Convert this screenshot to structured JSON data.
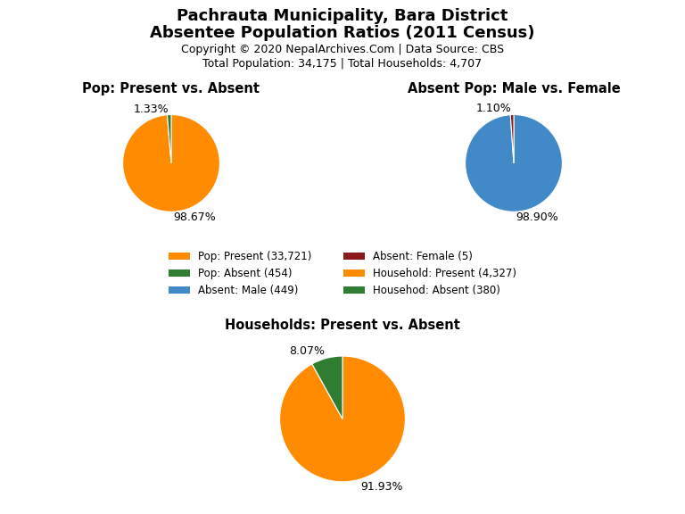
{
  "title": "Pachrauta Municipality, Bara District",
  "subtitle": "Absentee Population Ratios (2011 Census)",
  "annotations": [
    "Copyright © 2020 NepalArchives.Com | Data Source: CBS",
    "Total Population: 34,175 | Total Households: 4,707"
  ],
  "legend": "center",
  "chart_data": [
    {
      "type": "pie",
      "title": "Pop: Present vs. Absent",
      "categories": [
        "Pop: Present (33,721)",
        "Pop: Absent (454)"
      ],
      "values": [
        98.67,
        1.33
      ],
      "value_labels": [
        "98.67%",
        "1.33%"
      ],
      "colors": [
        "#FF8C00",
        "#2E7D32"
      ]
    },
    {
      "type": "pie",
      "title": "Absent Pop: Male vs. Female",
      "categories": [
        "Absent: Male (449)",
        "Absent: Female (5)"
      ],
      "values": [
        98.9,
        1.1
      ],
      "value_labels": [
        "98.90%",
        "1.10%"
      ],
      "colors": [
        "#4189C7",
        "#8B1A1A"
      ]
    },
    {
      "type": "pie",
      "title": "Households: Present vs. Absent",
      "categories": [
        "Household: Present (4,327)",
        "Househod: Absent (380)"
      ],
      "values": [
        91.93,
        8.07
      ],
      "value_labels": [
        "91.93%",
        "8.07%"
      ],
      "colors": [
        "#FF8C00",
        "#2E7D32"
      ]
    }
  ]
}
